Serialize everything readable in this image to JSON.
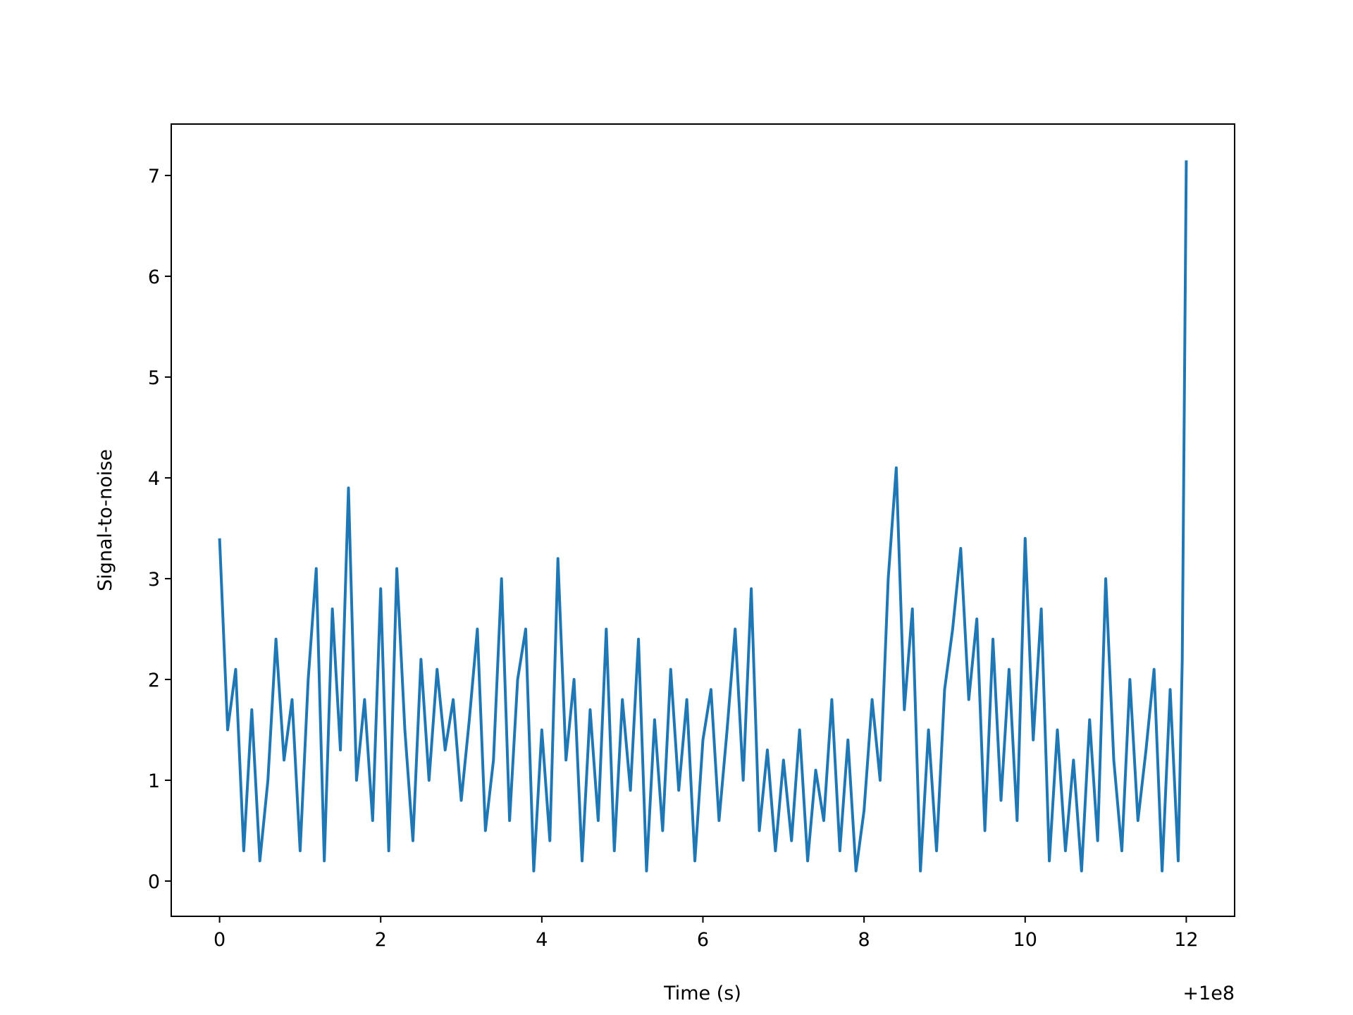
{
  "chart_data": {
    "type": "line",
    "xlabel": "Time (s)",
    "ylabel": "Signal-to-noise",
    "x_offset_label": "+1e8",
    "x": [
      0,
      0.1,
      0.2,
      0.3,
      0.4,
      0.5,
      0.6,
      0.7,
      0.8,
      0.9,
      1.0,
      1.1,
      1.2,
      1.3,
      1.4,
      1.5,
      1.6,
      1.7,
      1.8,
      1.9,
      2.0,
      2.1,
      2.2,
      2.3,
      2.4,
      2.5,
      2.6,
      2.7,
      2.8,
      2.9,
      3.0,
      3.1,
      3.2,
      3.3,
      3.4,
      3.5,
      3.6,
      3.7,
      3.8,
      3.9,
      4.0,
      4.1,
      4.2,
      4.3,
      4.4,
      4.5,
      4.6,
      4.7,
      4.8,
      4.9,
      5.0,
      5.1,
      5.2,
      5.3,
      5.4,
      5.5,
      5.6,
      5.7,
      5.8,
      5.9,
      6.0,
      6.1,
      6.2,
      6.3,
      6.4,
      6.5,
      6.6,
      6.7,
      6.8,
      6.9,
      7.0,
      7.1,
      7.2,
      7.3,
      7.4,
      7.5,
      7.6,
      7.7,
      7.8,
      7.9,
      8.0,
      8.1,
      8.2,
      8.3,
      8.4,
      8.5,
      8.6,
      8.7,
      8.8,
      8.9,
      9.0,
      9.1,
      9.2,
      9.3,
      9.4,
      9.5,
      9.6,
      9.7,
      9.8,
      9.9,
      10.0,
      10.1,
      10.2,
      10.3,
      10.4,
      10.5,
      10.6,
      10.7,
      10.8,
      10.9,
      11.0,
      11.1,
      11.2,
      11.3,
      11.4,
      11.5,
      11.6,
      11.7,
      11.8,
      11.9,
      11.95,
      12.0
    ],
    "series": [
      {
        "color": "#1f77b4",
        "values": [
          3.4,
          1.5,
          2.1,
          0.3,
          1.7,
          0.2,
          1.0,
          2.4,
          1.2,
          1.8,
          0.3,
          2.0,
          3.1,
          0.2,
          2.7,
          1.3,
          3.9,
          1.0,
          1.8,
          0.6,
          2.9,
          0.3,
          3.1,
          1.5,
          0.4,
          2.2,
          1.0,
          2.1,
          1.3,
          1.8,
          0.8,
          1.6,
          2.5,
          0.5,
          1.2,
          3.0,
          0.6,
          2.0,
          2.5,
          0.1,
          1.5,
          0.4,
          3.2,
          1.2,
          2.0,
          0.2,
          1.7,
          0.6,
          2.5,
          0.3,
          1.8,
          0.9,
          2.4,
          0.1,
          1.6,
          0.5,
          2.1,
          0.9,
          1.8,
          0.2,
          1.4,
          1.9,
          0.6,
          1.5,
          2.5,
          1.0,
          2.9,
          0.5,
          1.3,
          0.3,
          1.2,
          0.4,
          1.5,
          0.2,
          1.1,
          0.6,
          1.8,
          0.3,
          1.4,
          0.1,
          0.7,
          1.8,
          1.0,
          3.0,
          4.1,
          1.7,
          2.7,
          0.1,
          1.5,
          0.3,
          1.9,
          2.5,
          3.3,
          1.8,
          2.6,
          0.5,
          2.4,
          0.8,
          2.1,
          0.6,
          3.4,
          1.4,
          2.7,
          0.2,
          1.5,
          0.3,
          1.2,
          0.1,
          1.6,
          0.4,
          3.0,
          1.2,
          0.3,
          2.0,
          0.6,
          1.3,
          2.1,
          0.1,
          1.9,
          0.2,
          2.2,
          7.15
        ]
      }
    ],
    "xlim": [
      -0.6,
      12.6
    ],
    "ylim": [
      -0.35,
      7.51
    ],
    "xticks": [
      0,
      2,
      4,
      6,
      8,
      10,
      12
    ],
    "yticks": [
      0,
      1,
      2,
      3,
      4,
      5,
      6,
      7
    ]
  }
}
